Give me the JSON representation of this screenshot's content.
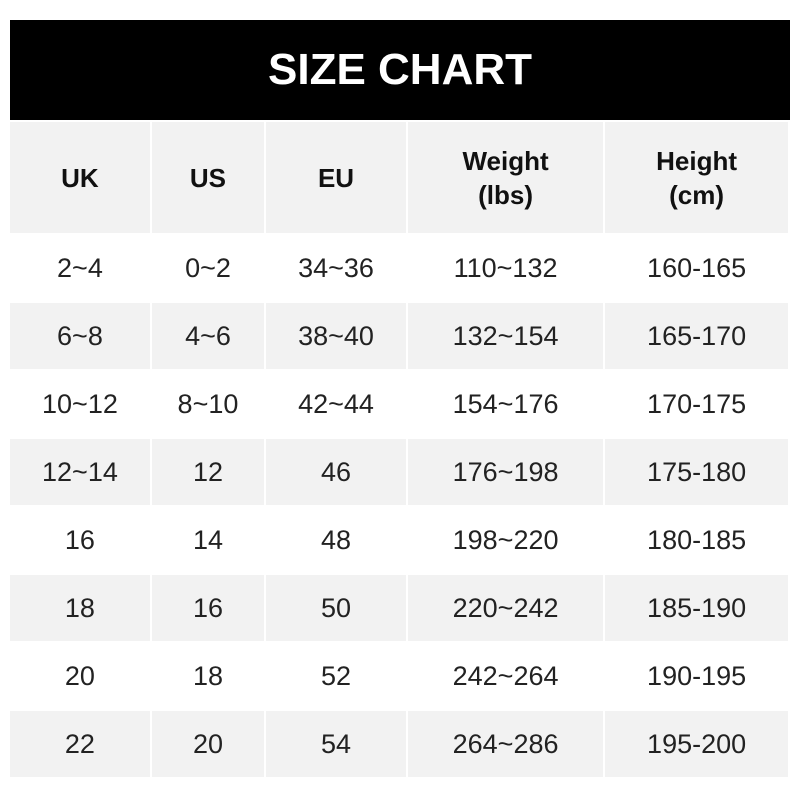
{
  "title": "SIZE CHART",
  "headers": [
    [
      "UK"
    ],
    [
      "US"
    ],
    [
      "EU"
    ],
    [
      "Weight",
      "(lbs)"
    ],
    [
      "Height",
      "(cm)"
    ]
  ],
  "rows": [
    [
      "2~4",
      "0~2",
      "34~36",
      "110~132",
      "160-165"
    ],
    [
      "6~8",
      "4~6",
      "38~40",
      "132~154",
      "165-170"
    ],
    [
      "10~12",
      "8~10",
      "42~44",
      "154~176",
      "170-175"
    ],
    [
      "12~14",
      "12",
      "46",
      "176~198",
      "175-180"
    ],
    [
      "16",
      "14",
      "48",
      "198~220",
      "180-185"
    ],
    [
      "18",
      "16",
      "50",
      "220~242",
      "185-190"
    ],
    [
      "20",
      "18",
      "52",
      "242~264",
      "190-195"
    ],
    [
      "22",
      "20",
      "54",
      "264~286",
      "195-200"
    ]
  ],
  "colors": {
    "header_bg": "#000000",
    "alt_row_bg": "#f2f2f2"
  }
}
